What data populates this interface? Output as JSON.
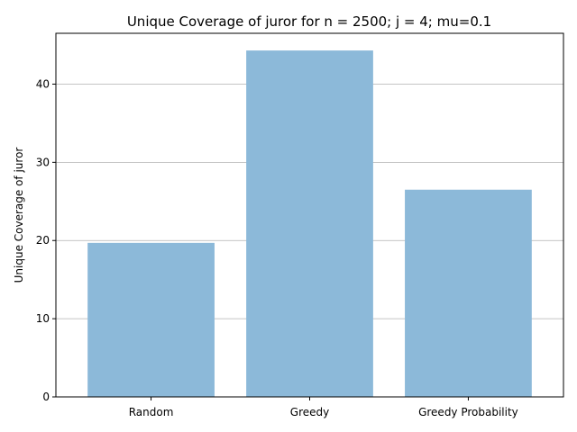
{
  "chart_data": {
    "type": "bar",
    "title": "Unique Coverage of juror for n = 2500; j = 4; mu=0.1",
    "xlabel": "",
    "ylabel": "Unique Coverage of juror",
    "categories": [
      "Random",
      "Greedy",
      "Greedy Probability"
    ],
    "values": [
      19.7,
      44.3,
      26.5
    ],
    "ylim": [
      0,
      46.5
    ],
    "yticks": [
      0,
      10,
      20,
      30,
      40
    ],
    "grid": "y",
    "bar_color": "#8cb9d9",
    "legend": "none"
  }
}
